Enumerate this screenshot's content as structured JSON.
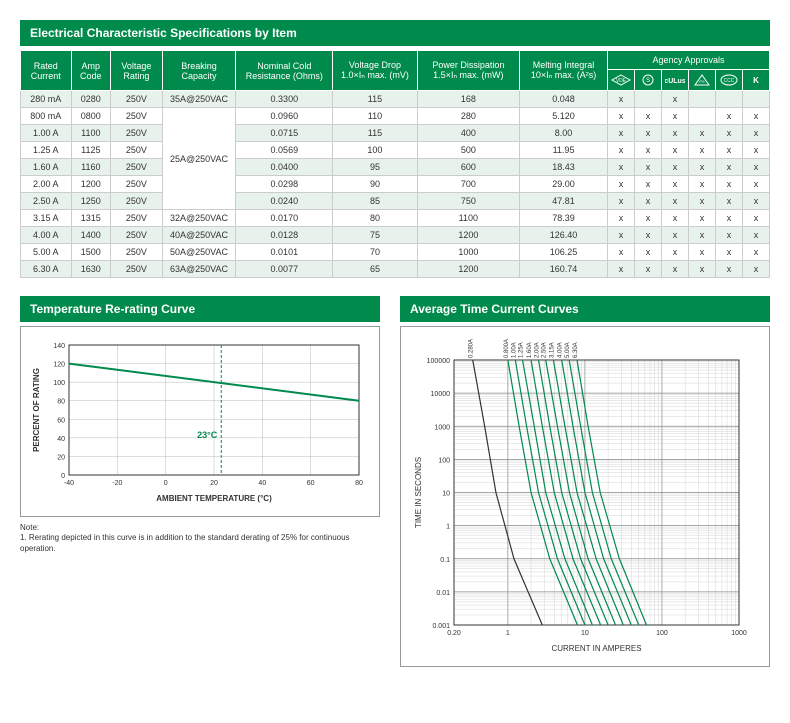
{
  "colors": {
    "brand_green": "#008a4b",
    "alt_row": "#e8f2ec",
    "grid": "#cccccc",
    "chart_line": "#008a4b",
    "chart_grid": "#bbbbbb",
    "chart_text": "#333333"
  },
  "spec_table": {
    "title": "Electrical Characteristic Specifications by Item",
    "headers": {
      "rated_current": "Rated Current",
      "amp_code": "Amp Code",
      "voltage_rating": "Voltage Rating",
      "breaking_capacity": "Breaking Capacity",
      "nominal_cold_resistance": "Nominal Cold Resistance (Ohms)",
      "voltage_drop": "Voltage Drop 1.0×Iₙ max. (mV)",
      "power_dissipation": "Power Dissipation 1.5×Iₙ max. (mW)",
      "melting_integral": "Melting Integral 10×Iₙ max. (A²s)",
      "agency_approvals": "Agency Approvals"
    },
    "agency_icons": [
      "vde",
      "s-circle",
      "cULus",
      "ps-e",
      "ccc",
      "kc"
    ],
    "rows": [
      {
        "rated_current": "280 mA",
        "amp_code": "0280",
        "voltage": "250V",
        "breaking": "35A@250VAC",
        "resistance": "0.3300",
        "vdrop": "115",
        "power": "168",
        "melt": "0.048",
        "approvals": [
          "x",
          "",
          "x",
          "",
          "",
          ""
        ]
      },
      {
        "rated_current": "800 mA",
        "amp_code": "0800",
        "voltage": "250V",
        "breaking": "",
        "resistance": "0.0960",
        "vdrop": "110",
        "power": "280",
        "melt": "5.120",
        "approvals": [
          "x",
          "x",
          "x",
          "",
          "x",
          "x"
        ]
      },
      {
        "rated_current": "1.00 A",
        "amp_code": "1100",
        "voltage": "250V",
        "breaking": "",
        "resistance": "0.0715",
        "vdrop": "115",
        "power": "400",
        "melt": "8.00",
        "approvals": [
          "x",
          "x",
          "x",
          "x",
          "x",
          "x"
        ]
      },
      {
        "rated_current": "1.25 A",
        "amp_code": "1125",
        "voltage": "250V",
        "breaking": "",
        "resistance": "0.0569",
        "vdrop": "100",
        "power": "500",
        "melt": "11.95",
        "approvals": [
          "x",
          "x",
          "x",
          "x",
          "x",
          "x"
        ]
      },
      {
        "rated_current": "1.60 A",
        "amp_code": "1160",
        "voltage": "250V",
        "breaking": "25A@250VAC",
        "resistance": "0.0400",
        "vdrop": "95",
        "power": "600",
        "melt": "18.43",
        "approvals": [
          "x",
          "x",
          "x",
          "x",
          "x",
          "x"
        ]
      },
      {
        "rated_current": "2.00 A",
        "amp_code": "1200",
        "voltage": "250V",
        "breaking": "",
        "resistance": "0.0298",
        "vdrop": "90",
        "power": "700",
        "melt": "29.00",
        "approvals": [
          "x",
          "x",
          "x",
          "x",
          "x",
          "x"
        ]
      },
      {
        "rated_current": "2.50 A",
        "amp_code": "1250",
        "voltage": "250V",
        "breaking": "",
        "resistance": "0.0240",
        "vdrop": "85",
        "power": "750",
        "melt": "47.81",
        "approvals": [
          "x",
          "x",
          "x",
          "x",
          "x",
          "x"
        ]
      },
      {
        "rated_current": "3.15 A",
        "amp_code": "1315",
        "voltage": "250V",
        "breaking": "32A@250VAC",
        "resistance": "0.0170",
        "vdrop": "80",
        "power": "1100",
        "melt": "78.39",
        "approvals": [
          "x",
          "x",
          "x",
          "x",
          "x",
          "x"
        ]
      },
      {
        "rated_current": "4.00 A",
        "amp_code": "1400",
        "voltage": "250V",
        "breaking": "40A@250VAC",
        "resistance": "0.0128",
        "vdrop": "75",
        "power": "1200",
        "melt": "126.40",
        "approvals": [
          "x",
          "x",
          "x",
          "x",
          "x",
          "x"
        ]
      },
      {
        "rated_current": "5.00 A",
        "amp_code": "1500",
        "voltage": "250V",
        "breaking": "50A@250VAC",
        "resistance": "0.0101",
        "vdrop": "70",
        "power": "1000",
        "melt": "106.25",
        "approvals": [
          "x",
          "x",
          "x",
          "x",
          "x",
          "x"
        ]
      },
      {
        "rated_current": "6.30 A",
        "amp_code": "1630",
        "voltage": "250V",
        "breaking": "63A@250VAC",
        "resistance": "0.0077",
        "vdrop": "65",
        "power": "1200",
        "melt": "160.74",
        "approvals": [
          "x",
          "x",
          "x",
          "x",
          "x",
          "x"
        ]
      }
    ],
    "breaking_merge": {
      "start_row": 1,
      "span": 6,
      "value": "25A@250VAC"
    }
  },
  "rerating_chart": {
    "title": "Temperature Re-rating Curve",
    "type": "line",
    "x_label": "AMBIENT TEMPERATURE (°C)",
    "y_label": "PERCENT OF RATING",
    "xlim": [
      -40,
      80
    ],
    "ylim": [
      0,
      140
    ],
    "xtick_step": 20,
    "ytick_step": 20,
    "line_color": "#008a4b",
    "grid_color": "#bbbbbb",
    "background": "#ffffff",
    "marker_temp": 23,
    "marker_label": "23°C",
    "marker_color": "#008a4b",
    "points": [
      {
        "x": -40,
        "y": 120
      },
      {
        "x": 80,
        "y": 80
      }
    ],
    "note_title": "Note:",
    "note_text": "1. Rerating depicted in this curve is in addition to the standard derating of 25% for continuous operation."
  },
  "tcc_chart": {
    "title": "Average Time Current Curves",
    "type": "loglog-line",
    "x_label": "CURRENT IN AMPERES",
    "y_label": "TIME IN SECONDS",
    "xlim_log": [
      0.2,
      1000
    ],
    "ylim_log": [
      0.001,
      100000
    ],
    "x_ticks": [
      "0.20",
      "1",
      "10",
      "100",
      "1000"
    ],
    "y_ticks": [
      "0.001",
      "0.01",
      "0.1",
      "1",
      "10",
      "100",
      "1000",
      "10000",
      "100000"
    ],
    "line_color": "#008a4b",
    "grid_color": "#bbbbbb",
    "series_labels": [
      "0.280A",
      "0.800A",
      "1.00A",
      "1.25A",
      "1.60A",
      "2.00A",
      "2.50A",
      "3.15A",
      "4.00A",
      "5.00A",
      "6.30A"
    ],
    "series": [
      {
        "label": "0.280A",
        "color": "#333333",
        "points": [
          {
            "x": 0.35,
            "y": 100000
          },
          {
            "x": 0.5,
            "y": 1000
          },
          {
            "x": 0.7,
            "y": 10
          },
          {
            "x": 1.2,
            "y": 0.1
          },
          {
            "x": 2.8,
            "y": 0.001
          }
        ]
      },
      {
        "label": "0.800A",
        "color": "#008a4b",
        "points": [
          {
            "x": 1.0,
            "y": 100000
          },
          {
            "x": 1.4,
            "y": 1000
          },
          {
            "x": 2.0,
            "y": 10
          },
          {
            "x": 3.5,
            "y": 0.1
          },
          {
            "x": 8,
            "y": 0.001
          }
        ]
      },
      {
        "label": "1.00A",
        "color": "#008a4b",
        "points": [
          {
            "x": 1.25,
            "y": 100000
          },
          {
            "x": 1.75,
            "y": 1000
          },
          {
            "x": 2.5,
            "y": 10
          },
          {
            "x": 4.4,
            "y": 0.1
          },
          {
            "x": 10,
            "y": 0.001
          }
        ]
      },
      {
        "label": "1.25A",
        "color": "#008a4b",
        "points": [
          {
            "x": 1.55,
            "y": 100000
          },
          {
            "x": 2.2,
            "y": 1000
          },
          {
            "x": 3.1,
            "y": 10
          },
          {
            "x": 5.5,
            "y": 0.1
          },
          {
            "x": 12.5,
            "y": 0.001
          }
        ]
      },
      {
        "label": "1.60A",
        "color": "#008a4b",
        "points": [
          {
            "x": 2.0,
            "y": 100000
          },
          {
            "x": 2.8,
            "y": 1000
          },
          {
            "x": 4.0,
            "y": 10
          },
          {
            "x": 7.0,
            "y": 0.1
          },
          {
            "x": 16,
            "y": 0.001
          }
        ]
      },
      {
        "label": "2.00A",
        "color": "#008a4b",
        "points": [
          {
            "x": 2.5,
            "y": 100000
          },
          {
            "x": 3.5,
            "y": 1000
          },
          {
            "x": 5.0,
            "y": 10
          },
          {
            "x": 8.8,
            "y": 0.1
          },
          {
            "x": 20,
            "y": 0.001
          }
        ]
      },
      {
        "label": "2.50A",
        "color": "#008a4b",
        "points": [
          {
            "x": 3.1,
            "y": 100000
          },
          {
            "x": 4.4,
            "y": 1000
          },
          {
            "x": 6.3,
            "y": 10
          },
          {
            "x": 11,
            "y": 0.1
          },
          {
            "x": 25,
            "y": 0.001
          }
        ]
      },
      {
        "label": "3.15A",
        "color": "#008a4b",
        "points": [
          {
            "x": 3.9,
            "y": 100000
          },
          {
            "x": 5.5,
            "y": 1000
          },
          {
            "x": 7.9,
            "y": 10
          },
          {
            "x": 14,
            "y": 0.1
          },
          {
            "x": 31.5,
            "y": 0.001
          }
        ]
      },
      {
        "label": "4.00A",
        "color": "#008a4b",
        "points": [
          {
            "x": 5.0,
            "y": 100000
          },
          {
            "x": 7.0,
            "y": 1000
          },
          {
            "x": 10,
            "y": 10
          },
          {
            "x": 17.5,
            "y": 0.1
          },
          {
            "x": 40,
            "y": 0.001
          }
        ]
      },
      {
        "label": "5.00A",
        "color": "#008a4b",
        "points": [
          {
            "x": 6.25,
            "y": 100000
          },
          {
            "x": 8.8,
            "y": 1000
          },
          {
            "x": 12.5,
            "y": 10
          },
          {
            "x": 22,
            "y": 0.1
          },
          {
            "x": 50,
            "y": 0.001
          }
        ]
      },
      {
        "label": "6.30A",
        "color": "#008a4b",
        "points": [
          {
            "x": 7.9,
            "y": 100000
          },
          {
            "x": 11,
            "y": 1000
          },
          {
            "x": 15.8,
            "y": 10
          },
          {
            "x": 28,
            "y": 0.1
          },
          {
            "x": 63,
            "y": 0.001
          }
        ]
      }
    ]
  }
}
